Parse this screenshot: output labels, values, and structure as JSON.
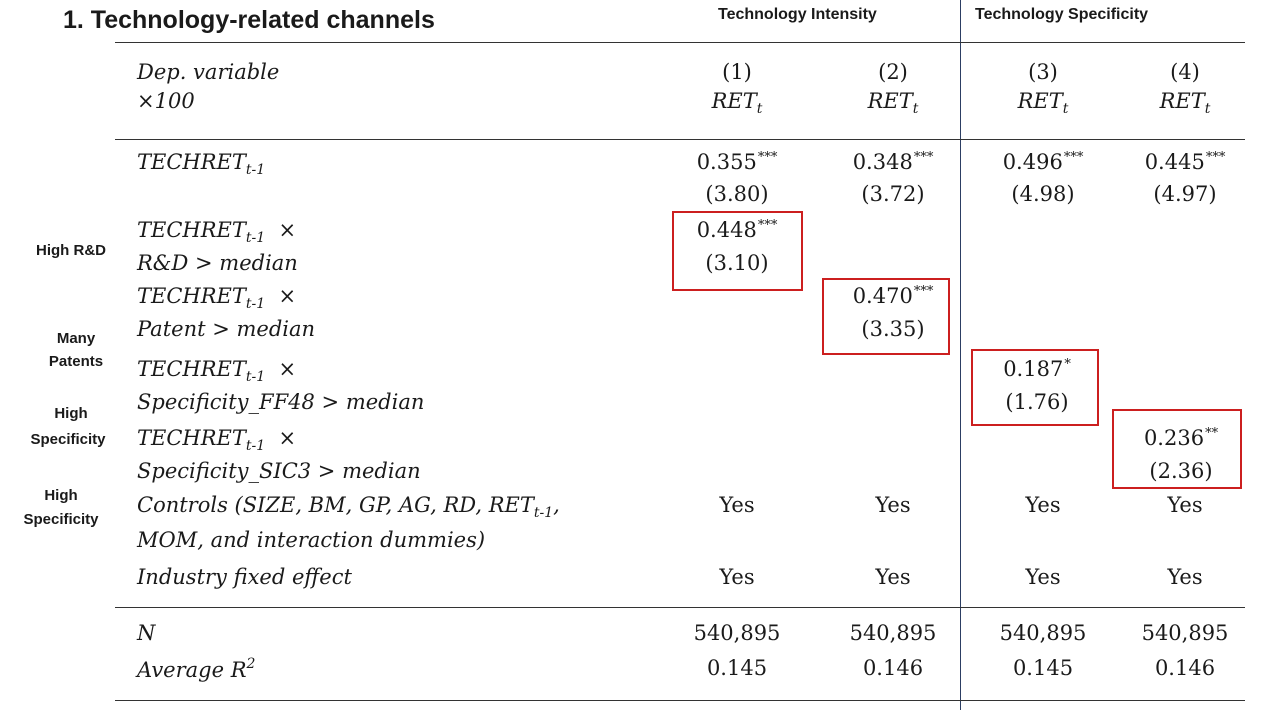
{
  "title": "1. Technology-related channels",
  "groups": {
    "intensity": "Technology Intensity",
    "specificity": "Technology Specificity"
  },
  "header": {
    "dep_line1": "Dep. variable",
    "dep_line2": "×100",
    "cols": [
      "(1)",
      "(2)",
      "(3)",
      "(4)"
    ],
    "ret_base": "RET",
    "ret_sub": "t"
  },
  "rows": {
    "techret": {
      "base": "TECHRET",
      "sub": "t-1"
    },
    "times": "×",
    "rd_label": "R&D > median",
    "patent_label": "Patent > median",
    "ff48_label": "Specificity_FF48 > median",
    "sic3_label": "Specificity_SIC3 > median",
    "controls_line1_a": "Controls (SIZE, BM, GP, AG, RD, RET",
    "controls_line1_sub": "t-1",
    "controls_line1_b": ",",
    "controls_line2": "MOM, and interaction dummies)",
    "industry": "Industry fixed effect",
    "n_label": "N",
    "r2_label": "Average R",
    "r2_sup": "2"
  },
  "values": {
    "techret_coef": [
      "0.355",
      "0.348",
      "0.496",
      "0.445"
    ],
    "techret_stars": [
      "***",
      "***",
      "***",
      "***"
    ],
    "techret_t": [
      "(3.80)",
      "(3.72)",
      "(4.98)",
      "(4.97)"
    ],
    "rd_coef": "0.448",
    "rd_stars": "***",
    "rd_t": "(3.10)",
    "patent_coef": "0.470",
    "patent_stars": "***",
    "patent_t": "(3.35)",
    "ff48_coef": "0.187",
    "ff48_stars": "*",
    "ff48_t": "(1.76)",
    "sic3_coef": "0.236",
    "sic3_stars": "**",
    "sic3_t": "(2.36)",
    "controls": [
      "Yes",
      "Yes",
      "Yes",
      "Yes"
    ],
    "industry": [
      "Yes",
      "Yes",
      "Yes",
      "Yes"
    ],
    "n": [
      "540,895",
      "540,895",
      "540,895",
      "540,895"
    ],
    "r2": [
      "0.145",
      "0.146",
      "0.145",
      "0.146"
    ]
  },
  "side_labels": {
    "high_rd": "High R&D",
    "many_patents_1": "Many",
    "many_patents_2": "Patents",
    "high_spec1_1": "High",
    "high_spec1_2": "Specificity",
    "high_spec2_1": "High",
    "high_spec2_2": "Specificity"
  },
  "colors": {
    "highlight_box": "#cc1f1f",
    "divider": "#2c3e63"
  }
}
